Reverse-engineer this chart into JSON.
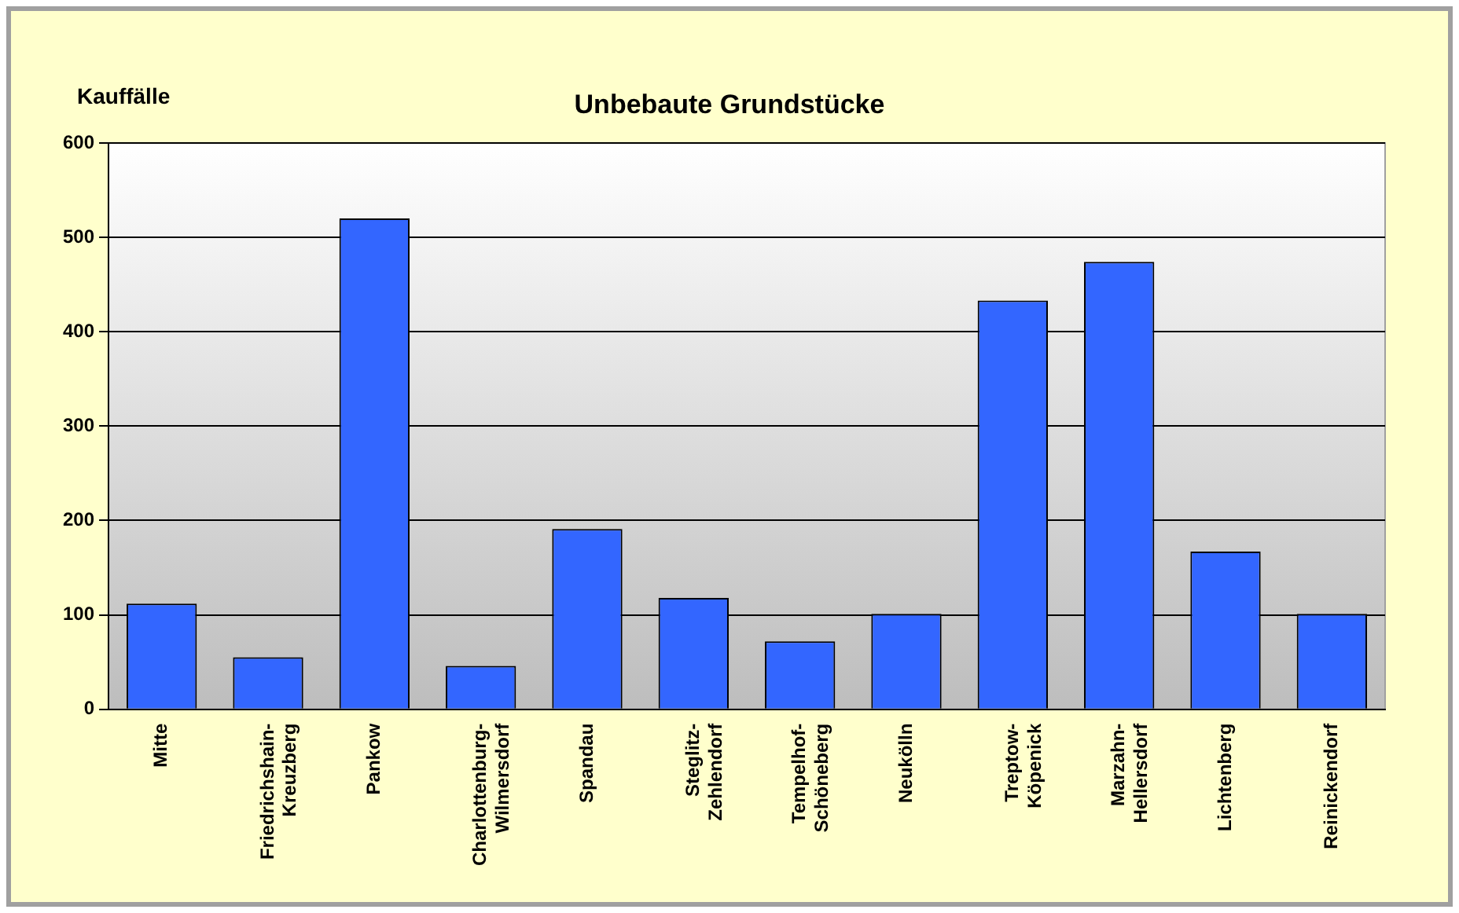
{
  "chart_data": {
    "type": "bar",
    "title": "Unbebaute Grundstücke",
    "ylabel": "Kauffälle",
    "categories": [
      "Mitte",
      "Friedrichshain-Kreuzberg",
      "Pankow",
      "Charlottenburg-Wilmersdorf",
      "Spandau",
      "Steglitz-Zehlendorf",
      "Tempelhof-Schöneberg",
      "Neukölln",
      "Treptow-Köpenick",
      "Marzahn-Hellersdorf",
      "Lichtenberg",
      "Reinickendorf"
    ],
    "values": [
      112,
      55,
      520,
      46,
      191,
      118,
      72,
      101,
      433,
      474,
      167,
      101
    ],
    "color": "#3366ff",
    "ylim": [
      0,
      600
    ],
    "yticks": [
      0,
      100,
      200,
      300,
      400,
      500,
      600
    ],
    "grid": "y",
    "legend": false
  }
}
